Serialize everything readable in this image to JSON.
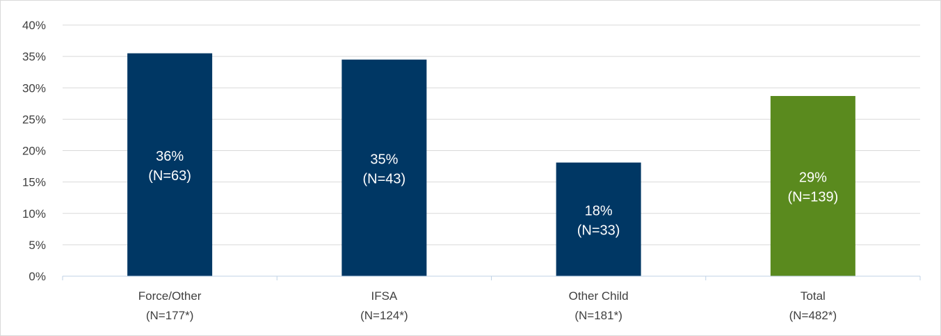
{
  "chart_data": {
    "type": "bar",
    "title": "",
    "xlabel": "",
    "ylabel": "",
    "ylim": [
      0,
      40
    ],
    "yticks": [
      "0%",
      "5%",
      "10%",
      "15%",
      "20%",
      "25%",
      "30%",
      "35%",
      "40%"
    ],
    "grid": true,
    "legend": "none",
    "categories": [
      {
        "line1": "Force/Other",
        "line2": "(N=177*)"
      },
      {
        "line1": "IFSA",
        "line2": "(N=124*)"
      },
      {
        "line1": "Other Child",
        "line2": "(N=181*)"
      },
      {
        "line1": "Total",
        "line2": "(N=482*)"
      }
    ],
    "values": [
      35.5,
      34.5,
      18.1,
      28.7
    ],
    "data_labels": [
      {
        "line1": "36%",
        "line2": "(N=63)"
      },
      {
        "line1": "35%",
        "line2": "(N=43)"
      },
      {
        "line1": "18%",
        "line2": "(N=33)"
      },
      {
        "line1": "29%",
        "line2": "(N=139)"
      }
    ],
    "colors": [
      "#003764",
      "#003764",
      "#003764",
      "#5a8a1e"
    ],
    "gridline_color": "#d9d9d9",
    "axis_color": "#bfd2e6"
  }
}
